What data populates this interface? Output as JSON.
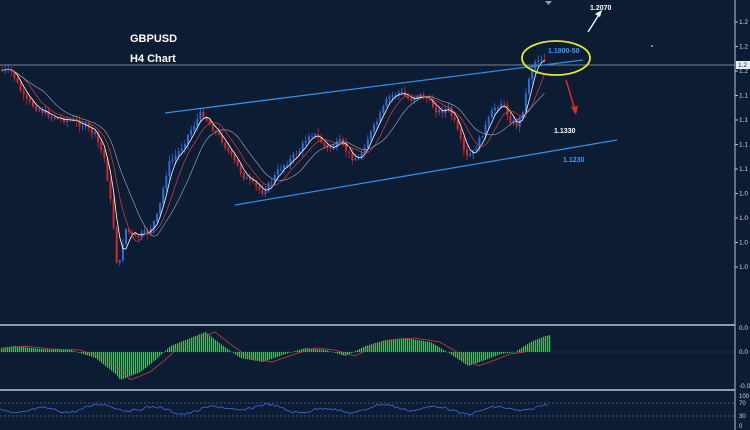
{
  "chart_data": {
    "type": "candlestick",
    "title": "GBPUSD",
    "subtitle": "H4 Chart",
    "price_axis": {
      "labels": [
        "1.2",
        "1.2",
        "1.2",
        "1.1",
        "1.1",
        "1.1",
        "1.1",
        "1.0",
        "1.0",
        "1.0",
        "1.0"
      ],
      "current_price_label": "1.2"
    },
    "annotations": {
      "target_up": "1.2070",
      "resistance_zone": "1.1800-50",
      "target_down": "1.1330",
      "channel_support": "1.1230"
    },
    "indicators": {
      "macd": {
        "axis_labels": [
          "0.0",
          "0.0",
          "-0.0"
        ]
      },
      "rsi": {
        "axis_labels": [
          "100",
          "70",
          "30",
          "0"
        ]
      }
    },
    "colors": {
      "background": "#0b1c33",
      "bull_candle": "#2f6bd8",
      "bear_candle": "#d32727",
      "channel": "#2f8fe6",
      "highlight": "#e4e82a",
      "arrow_up": "#ffffff",
      "arrow_down": "#e02b2b",
      "ma_fast": "#ffffff",
      "ma_slow": "#c23a3a",
      "macd_hist": "#36c760",
      "rsi_line": "#3a6de0"
    }
  }
}
